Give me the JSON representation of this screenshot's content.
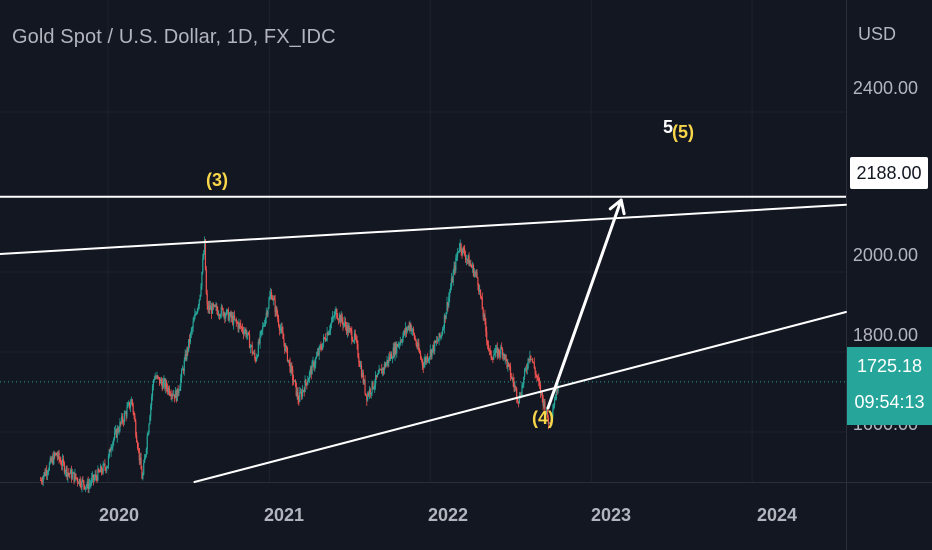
{
  "header": {
    "symbol_title": "Gold Spot / U.S. Dollar, 1D, FX_IDC"
  },
  "price_axis": {
    "currency": "USD",
    "labels": [
      "2400.00",
      "2000.00",
      "1800.00",
      "1600.00"
    ]
  },
  "time_axis": {
    "labels": [
      "2020",
      "2021",
      "2022",
      "2023",
      "2024"
    ]
  },
  "price_tag": {
    "value": "2188.00"
  },
  "last_price": {
    "price": "1725.18",
    "countdown": "09:54:13"
  },
  "annotations": {
    "wave3": "(3)",
    "wave4": "(4)",
    "wave5_white": "5",
    "wave5": "(5)"
  },
  "colors": {
    "background": "#131722",
    "up": "#26a69a",
    "down": "#ef5350",
    "drawing": "#ffffff",
    "wave_label": "#f7d64a",
    "grid": "#1e222d"
  },
  "chart_data": {
    "type": "candlestick",
    "title": "Gold Spot / U.S. Dollar, 1D, FX_IDC",
    "ylabel": "USD",
    "ylim": [
      1475,
      2580
    ],
    "xlim": [
      "2019-05-01",
      "2024-08-01"
    ],
    "y_ticks": [
      1600,
      1800,
      2000,
      2400
    ],
    "x_ticks": [
      "2020",
      "2021",
      "2022",
      "2023",
      "2024"
    ],
    "horizontal_line": 2188,
    "last_price": 1725.18,
    "price_path": [
      [
        "2019-08-01",
        1480
      ],
      [
        "2019-09-05",
        1545
      ],
      [
        "2019-10-01",
        1500
      ],
      [
        "2019-11-15",
        1465
      ],
      [
        "2019-12-31",
        1520
      ],
      [
        "2020-01-08",
        1570
      ],
      [
        "2020-02-24",
        1680
      ],
      [
        "2020-03-19",
        1480
      ],
      [
        "2020-04-14",
        1740
      ],
      [
        "2020-06-05",
        1690
      ],
      [
        "2020-07-27",
        1940
      ],
      [
        "2020-08-07",
        2070
      ],
      [
        "2020-08-12",
        1910
      ],
      [
        "2020-09-21",
        1900
      ],
      [
        "2020-11-09",
        1850
      ],
      [
        "2020-11-30",
        1780
      ],
      [
        "2021-01-05",
        1950
      ],
      [
        "2021-03-08",
        1680
      ],
      [
        "2021-06-01",
        1900
      ],
      [
        "2021-07-15",
        1830
      ],
      [
        "2021-08-09",
        1690
      ],
      [
        "2021-11-16",
        1870
      ],
      [
        "2021-12-15",
        1770
      ],
      [
        "2022-01-25",
        1840
      ],
      [
        "2022-03-08",
        2070
      ],
      [
        "2022-04-18",
        1985
      ],
      [
        "2022-05-16",
        1790
      ],
      [
        "2022-06-14",
        1805
      ],
      [
        "2022-07-21",
        1680
      ],
      [
        "2022-08-15",
        1800
      ],
      [
        "2022-09-28",
        1620
      ],
      [
        "2022-10-18",
        1725
      ]
    ],
    "drawings": [
      {
        "name": "upper-trendline",
        "from": [
          "2019-05-01",
          2045
        ],
        "to": [
          "2024-08-01",
          2168
        ]
      },
      {
        "name": "lower-trendline",
        "from": [
          "2020-07-15",
          1475
        ],
        "to": [
          "2024-08-01",
          1900
        ]
      },
      {
        "name": "projection-arrow",
        "from": [
          "2022-09-25",
          1660
        ],
        "to": [
          "2023-03-10",
          2180
        ]
      }
    ]
  }
}
